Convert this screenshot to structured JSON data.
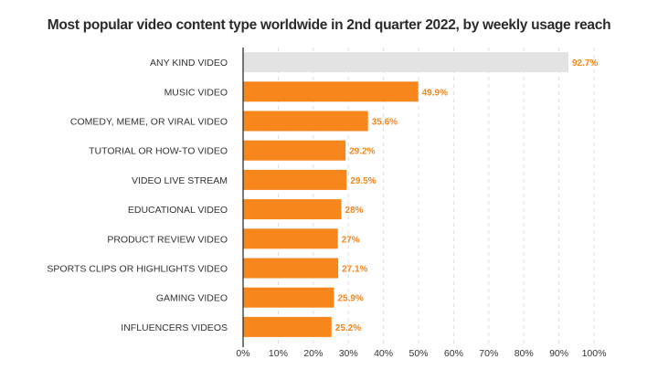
{
  "chart_data": {
    "type": "bar",
    "orientation": "horizontal",
    "title": "Most popular video content type worldwide in 2nd quarter 2022, by weekly usage reach",
    "xlabel": "",
    "ylabel": "",
    "categories": [
      "ANY KIND VIDEO",
      "MUSIC VIDEO",
      "COMEDY, MEME, OR VIRAL VIDEO",
      "TUTORIAL OR HOW-TO VIDEO",
      "VIDEO LIVE STREAM",
      "EDUCATIONAL VIDEO",
      "PRODUCT REVIEW VIDEO",
      "SPORTS CLIPS OR HIGHLIGHTS VIDEO",
      "GAMING VIDEO",
      "INFLUENCERS VIDEOS"
    ],
    "values": [
      92.7,
      49.9,
      35.6,
      29.2,
      29.5,
      28,
      27,
      27.1,
      25.9,
      25.2
    ],
    "value_labels": [
      "92.7%",
      "49.9%",
      "35.6%",
      "29.2%",
      "29.5%",
      "28%",
      "27%",
      "27.1%",
      "25.9%",
      "25.2%"
    ],
    "bar_colors": [
      "#e3e3e3",
      "#f7861c",
      "#f7861c",
      "#f7861c",
      "#f7861c",
      "#f7861c",
      "#f7861c",
      "#f7861c",
      "#f7861c",
      "#f7861c"
    ],
    "label_color": "#f7861c",
    "xlim": [
      0,
      100
    ],
    "xticks": [
      0,
      10,
      20,
      30,
      40,
      50,
      60,
      70,
      80,
      90,
      100
    ],
    "xtick_labels": [
      "0%",
      "10%",
      "20%",
      "30%",
      "40%",
      "50%",
      "60%",
      "70%",
      "80%",
      "90%",
      "100%"
    ],
    "grid": true,
    "grid_style": "dashed-vertical",
    "legend": "none"
  }
}
